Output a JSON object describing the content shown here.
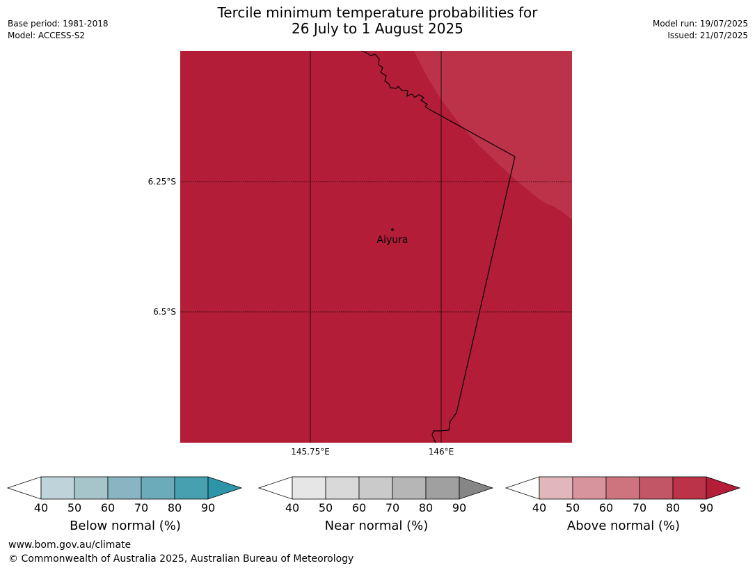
{
  "header": {
    "base_period": "Base period: 1981-2018",
    "model": "Model: ACCESS-S2",
    "title_line1": "Tercile minimum temperature probabilities for",
    "title_line2": "26 July to 1 August 2025",
    "model_run": "Model run: 19/07/2025",
    "issued": "Issued: 21/07/2025"
  },
  "map": {
    "latitude_labels": [
      "6.25°S",
      "6.5°S"
    ],
    "longitude_labels": [
      "145.75°E",
      "146°E"
    ],
    "place": "Aiyura",
    "fill_category": "Above normal",
    "fill_band": "90",
    "fill_color": "#b31d38",
    "ne_band": "80",
    "ne_color": "#bc3249"
  },
  "legends": [
    {
      "title": "Below normal (%)",
      "ticks": [
        "40",
        "50",
        "60",
        "70",
        "80",
        "90"
      ],
      "colors": [
        "#bed4da",
        "#a6c5ca",
        "#88b5c1",
        "#6babba",
        "#47a0b0",
        "#2e94a7"
      ]
    },
    {
      "title": "Near normal (%)",
      "ticks": [
        "40",
        "50",
        "60",
        "70",
        "80",
        "90"
      ],
      "colors": [
        "#e6e6e6",
        "#d9d9d9",
        "#cacaca",
        "#b6b6b6",
        "#a0a0a0",
        "#868686"
      ]
    },
    {
      "title": "Above normal (%)",
      "ticks": [
        "40",
        "50",
        "60",
        "70",
        "80",
        "90"
      ],
      "colors": [
        "#e2b7bc",
        "#d8949c",
        "#cd747f",
        "#c35666",
        "#bc3249",
        "#b31d38"
      ]
    }
  ],
  "footer": {
    "website": "www.bom.gov.au/climate",
    "copyright": "© Commonwealth of Australia 2025, Australian Bureau of Meteorology"
  }
}
